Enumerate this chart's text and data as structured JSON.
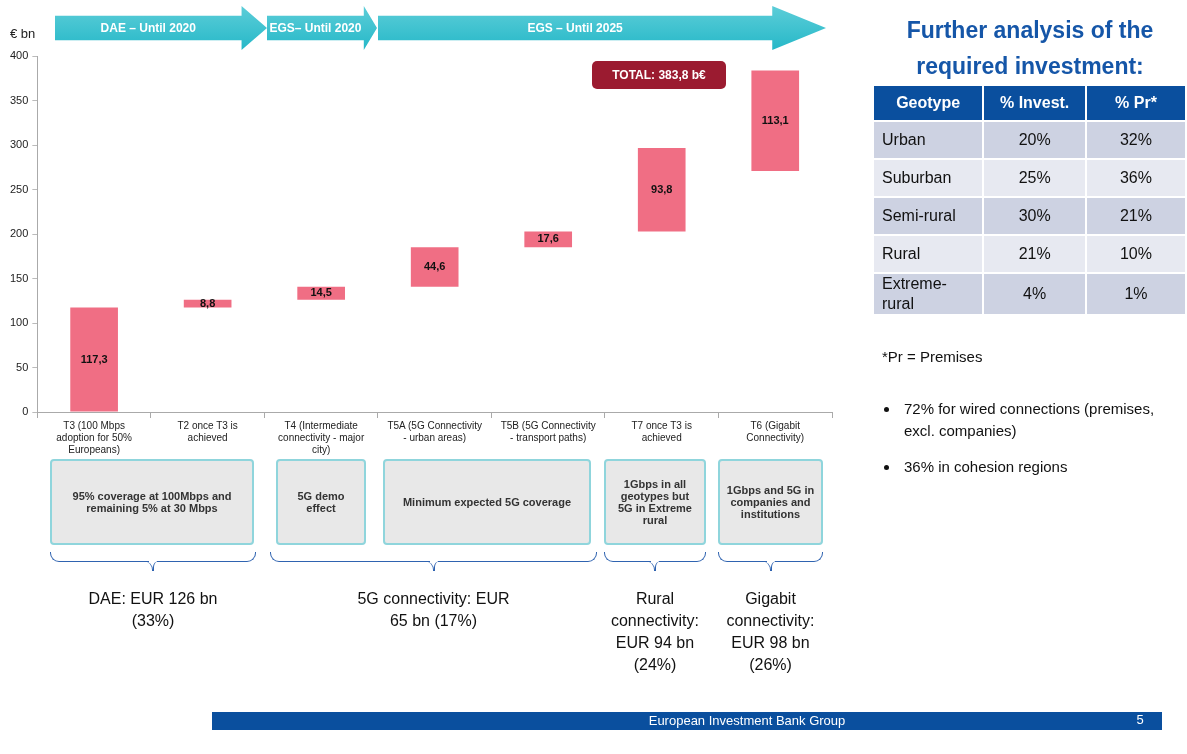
{
  "chart_data": [
    {
      "type": "bar",
      "ylabel": "€ bn",
      "categories": [
        "T3 (100 Mbps adoption for 50% Europeans)",
        "T2 once T3 is achieved",
        "T4 (Intermediate connectivity - major city)",
        "T5A (5G Connectivity - urban areas)",
        "T5B (5G Connectivity - transport paths)",
        "T7 once T3 is achieved",
        "T6 (Gigabit Connectivity)"
      ],
      "values": [
        117.3,
        8.8,
        14.5,
        44.6,
        17.6,
        93.8,
        113.1
      ],
      "base": [
        0,
        117.3,
        126.1,
        140.6,
        185.2,
        202.8,
        270.7
      ],
      "value_labels": [
        "117,3",
        "8,8",
        "14,5",
        "44,6",
        "17,6",
        "93,8",
        "113,1"
      ],
      "color": "#f06e84",
      "ylim": [
        0,
        400
      ],
      "yticks": [
        0,
        50,
        100,
        150,
        200,
        250,
        300,
        350,
        400
      ],
      "grid": false,
      "annotations": [
        "DAE – Until 2020",
        "EGS– Until 2020",
        "EGS – Until 2025",
        "TOTAL: 383,8 b€",
        "95%  coverage at 100Mbps and remaining 5% at 30 Mbps",
        "5G demo effect",
        "Minimum expected 5G coverage",
        "1Gbps in all geotypes but 5G in Extreme rural",
        "1Gbps and 5G in companies and institutions",
        "DAE: EUR 126 bn (33%)",
        "5G connectivity: EUR 65 bn (17%)",
        "Rural connectivity: EUR 94 bn (24%)",
        "Gigabit connectivity: EUR 98 bn (26%)",
        "European Investment Bank Group",
        "5"
      ]
    },
    {
      "type": "other",
      "title": "Further analysis of the required investment:",
      "annotations": [
        "Geotype",
        "% Invest.",
        "% Pr*",
        "Urban",
        "20%",
        "32%",
        "Suburban",
        "25%",
        "36%",
        "Semi-rural",
        "30%",
        "21%",
        "Rural",
        "21%",
        "10%",
        "Extreme-rural",
        "4%",
        "1%",
        "*Pr = Premises",
        "72% for wired connections (premises, excl. companies)",
        "36% in cohesion regions"
      ]
    }
  ]
}
